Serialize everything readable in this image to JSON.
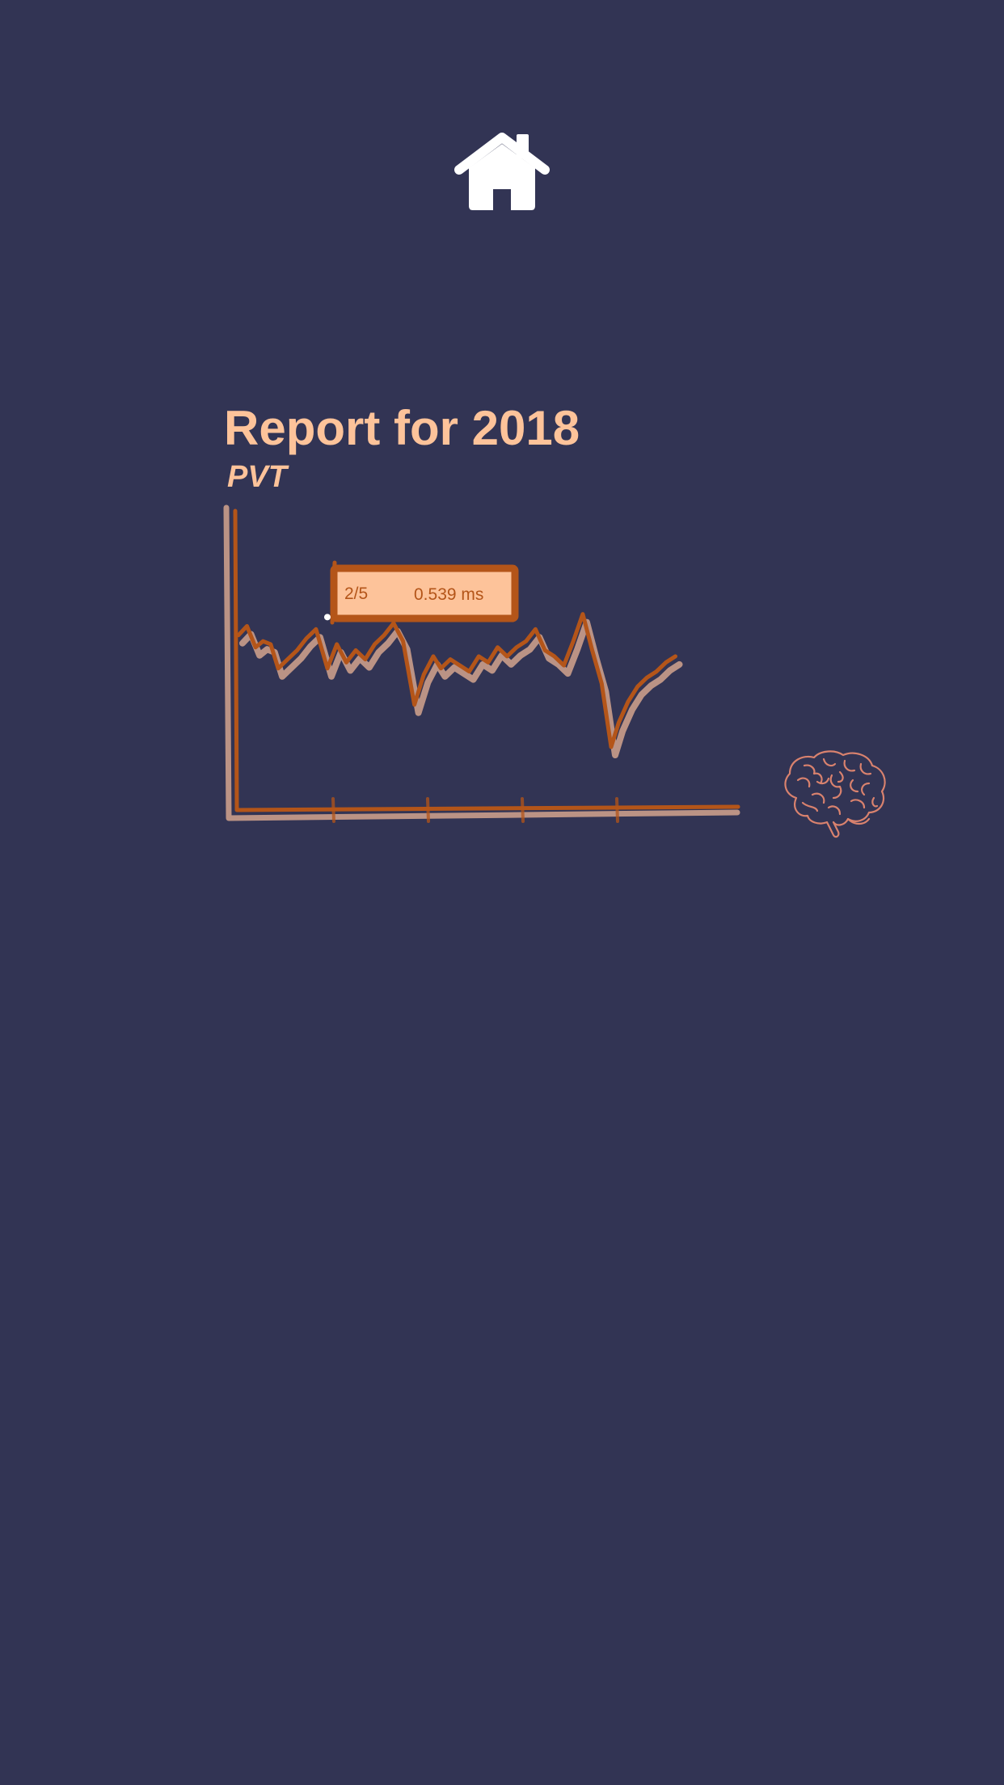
{
  "nav": {
    "home_icon": "home-icon"
  },
  "report": {
    "title": "Report for 2018",
    "subtitle": "PVT"
  },
  "chart_data": {
    "type": "line",
    "title": "Report for 2018",
    "subtitle": "PVT",
    "xlabel": "",
    "ylabel": "",
    "grid": false,
    "legend": "none",
    "unit": "ms",
    "xlim": [
      0,
      5
    ],
    "ylim": [
      0,
      0.95
    ],
    "tick_x": [
      1,
      2,
      3,
      4
    ],
    "series": [
      {
        "values": [
          [
            0.0,
            0.56
          ],
          [
            0.09,
            0.59
          ],
          [
            0.18,
            0.52
          ],
          [
            0.26,
            0.54
          ],
          [
            0.34,
            0.53
          ],
          [
            0.42,
            0.45
          ],
          [
            0.52,
            0.48
          ],
          [
            0.62,
            0.51
          ],
          [
            0.72,
            0.55
          ],
          [
            0.82,
            0.58
          ],
          [
            0.94,
            0.45
          ],
          [
            1.04,
            0.53
          ],
          [
            1.14,
            0.47
          ],
          [
            1.24,
            0.51
          ],
          [
            1.34,
            0.48
          ],
          [
            1.44,
            0.53
          ],
          [
            1.54,
            0.56
          ],
          [
            1.64,
            0.6
          ],
          [
            1.74,
            0.54
          ],
          [
            1.86,
            0.33
          ],
          [
            1.96,
            0.43
          ],
          [
            2.06,
            0.49
          ],
          [
            2.14,
            0.45
          ],
          [
            2.24,
            0.48
          ],
          [
            2.34,
            0.46
          ],
          [
            2.44,
            0.44
          ],
          [
            2.54,
            0.49
          ],
          [
            2.64,
            0.47
          ],
          [
            2.74,
            0.52
          ],
          [
            2.84,
            0.49
          ],
          [
            2.94,
            0.52
          ],
          [
            3.04,
            0.54
          ],
          [
            3.14,
            0.58
          ],
          [
            3.24,
            0.51
          ],
          [
            3.34,
            0.49
          ],
          [
            3.44,
            0.46
          ],
          [
            3.54,
            0.54
          ],
          [
            3.64,
            0.63
          ],
          [
            3.74,
            0.51
          ],
          [
            3.84,
            0.4
          ],
          [
            3.94,
            0.19
          ],
          [
            4.02,
            0.27
          ],
          [
            4.12,
            0.34
          ],
          [
            4.22,
            0.39
          ],
          [
            4.32,
            0.42
          ],
          [
            4.42,
            0.44
          ],
          [
            4.52,
            0.47
          ],
          [
            4.62,
            0.49
          ]
        ]
      }
    ],
    "tooltip": {
      "label": "2/5",
      "value": "0.539 ms",
      "point": [
        0.94,
        0.62
      ]
    }
  },
  "colors": {
    "background": "#323454",
    "accent": "#fdc39a",
    "line": "#b45519",
    "shadow_line": "#d4a58e",
    "brain": "#d9826e",
    "home": "#ffffff"
  },
  "decor": {
    "brain_icon": "brain-icon"
  }
}
